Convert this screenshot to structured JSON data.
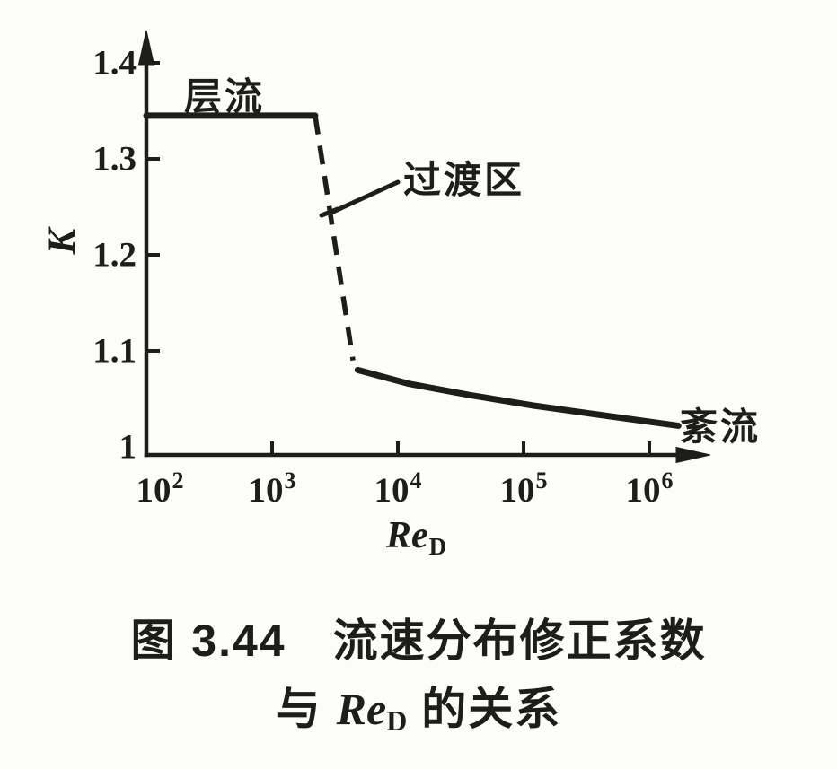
{
  "figure": {
    "caption": {
      "line1": "图 3.44　流速分布修正系数",
      "line2_prefix": "与 ",
      "line2_re": "Re",
      "line2_sub": "D",
      "line2_suffix": " 的关系"
    }
  },
  "chart_data": {
    "type": "line",
    "title": "",
    "xlabel": {
      "main": "Re",
      "sub": "D"
    },
    "ylabel": "K",
    "x_scale": "log",
    "xlim": [
      100,
      3000000
    ],
    "ylim": [
      1.0,
      1.45
    ],
    "grid": false,
    "legend": "none",
    "ink_color": "#1d1d1b",
    "paper_color": "#fcfcfa",
    "x_ticks": [
      {
        "base": "10",
        "exp": "2",
        "value": 100
      },
      {
        "base": "10",
        "exp": "3",
        "value": 1000
      },
      {
        "base": "10",
        "exp": "4",
        "value": 10000
      },
      {
        "base": "10",
        "exp": "5",
        "value": 100000
      },
      {
        "base": "10",
        "exp": "6",
        "value": 1000000
      }
    ],
    "y_ticks": [
      {
        "label": "1",
        "value": 1.0
      },
      {
        "label": "1.1",
        "value": 1.1
      },
      {
        "label": "1.2",
        "value": 1.2
      },
      {
        "label": "1.3",
        "value": 1.3
      },
      {
        "label": "1.4",
        "value": 1.4
      }
    ],
    "series": [
      {
        "name": "laminar",
        "label": "层流",
        "line_style": "solid",
        "x": [
          100,
          2200
        ],
        "y": [
          1.345,
          1.345
        ]
      },
      {
        "name": "transition",
        "label": "过渡区",
        "line_style": "dashed",
        "x": [
          2200,
          4400
        ],
        "y": [
          1.345,
          1.09
        ]
      },
      {
        "name": "turbulent",
        "label": "紊流",
        "line_style": "solid",
        "x": [
          4800,
          12000,
          37000,
          120000,
          370000,
          1700000
        ],
        "y": [
          1.08,
          1.066,
          1.054,
          1.043,
          1.034,
          1.022
        ]
      }
    ]
  }
}
